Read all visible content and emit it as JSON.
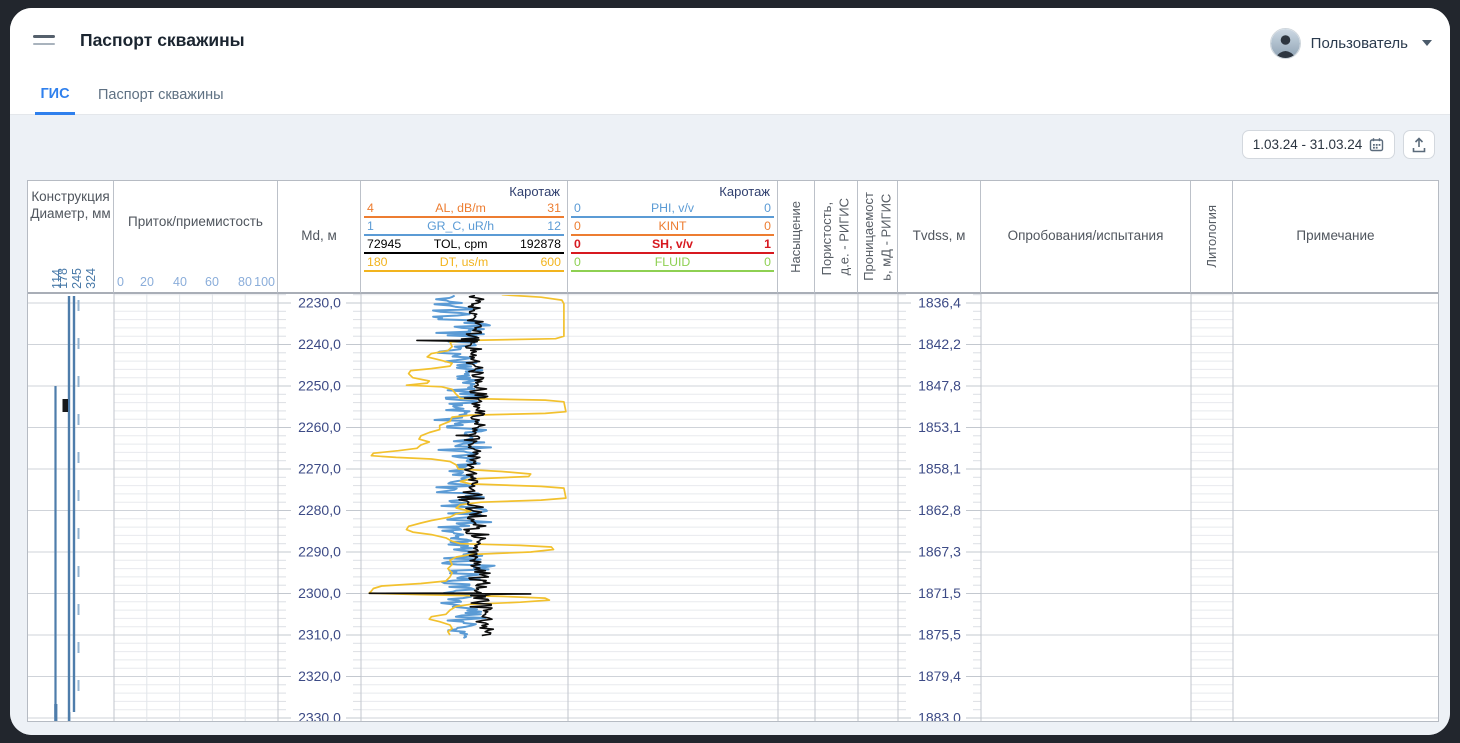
{
  "app": {
    "title": "Паспорт скважины",
    "user_label": "Пользователь"
  },
  "tabs": {
    "gis": "ГИС",
    "passport": "Паспорт скважины"
  },
  "toolbar": {
    "date_range": "1.03.24 - 31.03.24"
  },
  "theme": {
    "accent": "#2f80ed",
    "content_bg": "#edf1f6",
    "depth_label_color": "#3d4b86",
    "frame_bg": "#22262d"
  },
  "log_view": {
    "construction": {
      "title": "Конструкция Диаметр, мм",
      "diameters": [
        "114",
        "178",
        "245",
        "324"
      ]
    },
    "pritok": {
      "title": "Приток/приемистость",
      "scale": [
        "0",
        "20",
        "40",
        "60",
        "80",
        "100"
      ]
    },
    "md": {
      "title": "Md, м",
      "labels": [
        "2230,0",
        "2240,0",
        "2250,0",
        "2260,0",
        "2270,0",
        "2280,0",
        "2290,0",
        "2300,0",
        "2310,0",
        "2320,0",
        "2330,0"
      ]
    },
    "log1": {
      "title": "Каротаж",
      "curves": [
        {
          "name": "AL, dB/m",
          "min": "4",
          "max": "31",
          "color": "#ed7d31",
          "bold": false
        },
        {
          "name": "GR_C, uR/h",
          "min": "1",
          "max": "12",
          "color": "#5b9bd5",
          "bold": false
        },
        {
          "name": "TOL, cpm",
          "min": "72945",
          "max": "192878",
          "color": "#000000",
          "bold": false
        },
        {
          "name": "DT, us/m",
          "min": "180",
          "max": "600",
          "color": "#f2b41e",
          "bold": false
        }
      ]
    },
    "log2": {
      "title": "Каротаж",
      "curves": [
        {
          "name": "PHI, v/v",
          "min": "0",
          "max": "0",
          "color": "#5b9bd5",
          "bold": false
        },
        {
          "name": "KINT",
          "min": "0",
          "max": "0",
          "color": "#ed7d31",
          "bold": false
        },
        {
          "name": "SH, v/v",
          "min": "0",
          "max": "1",
          "color": "#d71920",
          "bold": true
        },
        {
          "name": "FLUID",
          "min": "0",
          "max": "0",
          "color": "#8ed052",
          "bold": false
        }
      ]
    },
    "nasysh": {
      "title": "Насыщение"
    },
    "porist": {
      "line1": "Пористость,",
      "line2": "д.е. - РИГИС"
    },
    "pronic": {
      "line1": "Проницаемост",
      "line2": "ь, мД - РИГИС"
    },
    "tvdss": {
      "title": "Tvdss, м",
      "labels": [
        "1836,4",
        "1842,2",
        "1847,8",
        "1853,1",
        "1858,1",
        "1862,8",
        "1867,3",
        "1871,5",
        "1875,5",
        "1879,4",
        "1883,0"
      ]
    },
    "oprob": {
      "title": "Опробования/испытания"
    },
    "litho": {
      "title": "Литология"
    },
    "prim": {
      "title": "Примечание"
    }
  },
  "chart_data": {
    "type": "well-log",
    "depth_unit": "m MD",
    "depth_range": [
      2228,
      2332
    ],
    "md_major_ticks": [
      2230,
      2240,
      2250,
      2260,
      2270,
      2280,
      2290,
      2300,
      2310,
      2320,
      2330
    ],
    "tvdss_at_majors": [
      1836.4,
      1842.2,
      1847.8,
      1853.1,
      1858.1,
      1862.8,
      1867.3,
      1871.5,
      1875.5,
      1879.4,
      1883.0
    ],
    "tracks": [
      {
        "id": "log1",
        "title": "Каротаж",
        "curves": [
          {
            "name": "AL, dB/m",
            "scale": [
              4,
              31
            ]
          },
          {
            "name": "GR_C, uR/h",
            "scale": [
              1,
              12
            ]
          },
          {
            "name": "TOL, cpm",
            "scale": [
              72945,
              192878
            ]
          },
          {
            "name": "DT, us/m",
            "scale": [
              180,
              600
            ]
          }
        ]
      },
      {
        "id": "log2",
        "title": "Каротаж",
        "curves": [
          {
            "name": "PHI, v/v",
            "scale": [
              0,
              0
            ]
          },
          {
            "name": "KINT",
            "scale": [
              0,
              0
            ]
          },
          {
            "name": "SH, v/v",
            "scale": [
              0,
              1
            ]
          },
          {
            "name": "FLUID",
            "scale": [
              0,
              0
            ]
          }
        ]
      },
      {
        "id": "pritok",
        "title": "Приток/приемистость",
        "scale": [
          0,
          100
        ]
      }
    ],
    "dt_profile": [
      [
        2228.0,
        0.68
      ],
      [
        2228.6,
        0.87
      ],
      [
        2229.3,
        0.97
      ],
      [
        2230.2,
        0.98
      ],
      [
        2238.0,
        0.98
      ],
      [
        2238.6,
        0.94
      ],
      [
        2239.0,
        0.53
      ],
      [
        2239.4,
        0.43
      ],
      [
        2240.5,
        0.44
      ],
      [
        2241.5,
        0.42
      ],
      [
        2242.2,
        0.34
      ],
      [
        2243.0,
        0.32
      ],
      [
        2243.6,
        0.37
      ],
      [
        2244.5,
        0.44
      ],
      [
        2245.2,
        0.43
      ],
      [
        2245.8,
        0.34
      ],
      [
        2246.3,
        0.24
      ],
      [
        2247.0,
        0.23
      ],
      [
        2248.0,
        0.25
      ],
      [
        2248.8,
        0.33
      ],
      [
        2249.3,
        0.32
      ],
      [
        2249.8,
        0.22
      ],
      [
        2250.2,
        0.39
      ],
      [
        2250.8,
        0.44
      ],
      [
        2252.0,
        0.46
      ],
      [
        2253.0,
        0.48
      ],
      [
        2253.4,
        0.89
      ],
      [
        2253.8,
        0.98
      ],
      [
        2256.2,
        0.99
      ],
      [
        2256.6,
        0.89
      ],
      [
        2257.0,
        0.53
      ],
      [
        2257.5,
        0.44
      ],
      [
        2258.5,
        0.43
      ],
      [
        2259.5,
        0.38
      ],
      [
        2260.5,
        0.38
      ],
      [
        2261.2,
        0.33
      ],
      [
        2262.0,
        0.29
      ],
      [
        2262.8,
        0.28
      ],
      [
        2263.5,
        0.33
      ],
      [
        2264.2,
        0.29
      ],
      [
        2265.0,
        0.27
      ],
      [
        2265.6,
        0.18
      ],
      [
        2266.2,
        0.06
      ],
      [
        2266.8,
        0.05
      ],
      [
        2267.2,
        0.17
      ],
      [
        2267.6,
        0.34
      ],
      [
        2268.2,
        0.43
      ],
      [
        2269.0,
        0.46
      ],
      [
        2270.0,
        0.47
      ],
      [
        2270.6,
        0.68
      ],
      [
        2271.2,
        0.82
      ],
      [
        2271.8,
        0.81
      ],
      [
        2272.4,
        0.53
      ],
      [
        2273.0,
        0.48
      ],
      [
        2273.6,
        0.53
      ],
      [
        2274.2,
        0.87
      ],
      [
        2274.6,
        0.98
      ],
      [
        2277.0,
        0.99
      ],
      [
        2277.5,
        0.87
      ],
      [
        2278.0,
        0.58
      ],
      [
        2278.6,
        0.48
      ],
      [
        2279.4,
        0.46
      ],
      [
        2280.2,
        0.53
      ],
      [
        2280.8,
        0.46
      ],
      [
        2281.6,
        0.43
      ],
      [
        2282.4,
        0.34
      ],
      [
        2283.0,
        0.29
      ],
      [
        2283.8,
        0.23
      ],
      [
        2284.6,
        0.22
      ],
      [
        2285.2,
        0.25
      ],
      [
        2285.8,
        0.34
      ],
      [
        2286.6,
        0.41
      ],
      [
        2287.4,
        0.44
      ],
      [
        2288.0,
        0.48
      ],
      [
        2288.4,
        0.77
      ],
      [
        2288.8,
        0.92
      ],
      [
        2289.4,
        0.93
      ],
      [
        2290.0,
        0.82
      ],
      [
        2290.6,
        0.53
      ],
      [
        2291.2,
        0.46
      ],
      [
        2292.0,
        0.43
      ],
      [
        2293.0,
        0.44
      ],
      [
        2294.0,
        0.42
      ],
      [
        2295.0,
        0.44
      ],
      [
        2296.0,
        0.43
      ],
      [
        2297.0,
        0.41
      ],
      [
        2297.6,
        0.29
      ],
      [
        2298.2,
        0.1
      ],
      [
        2298.8,
        0.06
      ],
      [
        2299.4,
        0.05
      ],
      [
        2299.9,
        0.04
      ],
      [
        2300.3,
        0.29
      ],
      [
        2300.7,
        0.68
      ],
      [
        2301.1,
        0.89
      ],
      [
        2301.6,
        0.91
      ],
      [
        2302.1,
        0.77
      ],
      [
        2302.6,
        0.53
      ],
      [
        2303.1,
        0.46
      ],
      [
        2304.0,
        0.43
      ],
      [
        2305.0,
        0.41
      ],
      [
        2305.6,
        0.34
      ],
      [
        2306.2,
        0.33
      ],
      [
        2306.8,
        0.38
      ],
      [
        2307.6,
        0.43
      ],
      [
        2308.4,
        0.44
      ],
      [
        2309.2,
        0.42
      ],
      [
        2310.0,
        0.43
      ]
    ],
    "gr_noise": {
      "seed": 7,
      "base": 0.455,
      "amp": 0.115,
      "amp_hot": 0.155,
      "hot": [
        [
          2229,
          2238
        ],
        [
          2258,
          2267
        ],
        [
          2274,
          2287
        ],
        [
          2292,
          2296
        ]
      ],
      "min": 0.25,
      "max": 0.72,
      "from": 2228.2,
      "to": 2311,
      "step": 0.3
    },
    "tol_noise": {
      "seed": 13,
      "base": 0.578,
      "amp": 0.05,
      "amp_hot": 0.075,
      "hot": [
        [
          2276,
          2286
        ],
        [
          2293,
          2308
        ]
      ],
      "min": 0.46,
      "max": 0.72,
      "from": 2228.2,
      "to": 2310.4,
      "step": 0.3,
      "spikes": [
        [
          2238.9,
          0.57
        ],
        [
          2239.02,
          0.27
        ],
        [
          2239.3,
          0.56
        ],
        [
          2252.9,
          0.5
        ],
        [
          2261.9,
          0.46
        ],
        [
          2299.85,
          0.58
        ],
        [
          2299.95,
          0.04
        ],
        [
          2300.1,
          0.82
        ],
        [
          2300.45,
          0.6
        ]
      ]
    }
  }
}
